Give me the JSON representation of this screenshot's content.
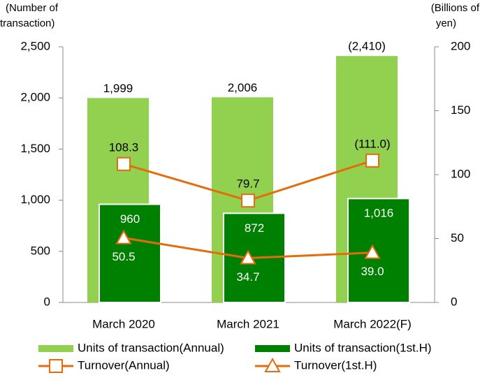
{
  "chart_data": {
    "type": "bar_line",
    "y_label": [
      "(Number of",
      "transaction)"
    ],
    "y2_label": [
      "(Billions of",
      "yen)"
    ],
    "categories": [
      "March 2020",
      "March 2021",
      "March 2022(F)"
    ],
    "ylim": [
      0,
      2500
    ],
    "yticks": [
      0,
      500,
      {
        "value": 1000,
        "label": "1,000"
      },
      {
        "value": 1500,
        "label": "1,500"
      },
      {
        "value": 2000,
        "label": "2,000"
      },
      {
        "value": 2500,
        "label": "2,500"
      }
    ],
    "y2lim": [
      0,
      200
    ],
    "y2ticks": [
      0,
      50,
      100,
      150,
      200
    ],
    "series": [
      {
        "name": "Units of transaction(Annual)",
        "type": "bar",
        "color": "#92d050",
        "values": [
          1999,
          2006,
          2410
        ],
        "value_labels": [
          "1,999",
          "2,006",
          "(2,410)"
        ]
      },
      {
        "name": "Units of transaction(1st.H)",
        "type": "bar",
        "color": "#008000",
        "values": [
          960,
          872,
          1016
        ],
        "value_labels": [
          "960",
          "872",
          "1,016"
        ]
      },
      {
        "name": "Turnover(Annual)",
        "type": "line",
        "marker": "square",
        "axis": "y2",
        "color": "#e46c0a",
        "values": [
          108.3,
          79.7,
          111.0
        ],
        "value_labels": [
          "108.3",
          "79.7",
          "(111.0)"
        ]
      },
      {
        "name": "Turnover(1st.H)",
        "type": "line",
        "marker": "triangle",
        "axis": "y2",
        "color": "#e46c0a",
        "values": [
          50.5,
          34.7,
          39.0
        ],
        "value_labels": [
          "50.5",
          "34.7",
          "39.0"
        ]
      }
    ]
  }
}
